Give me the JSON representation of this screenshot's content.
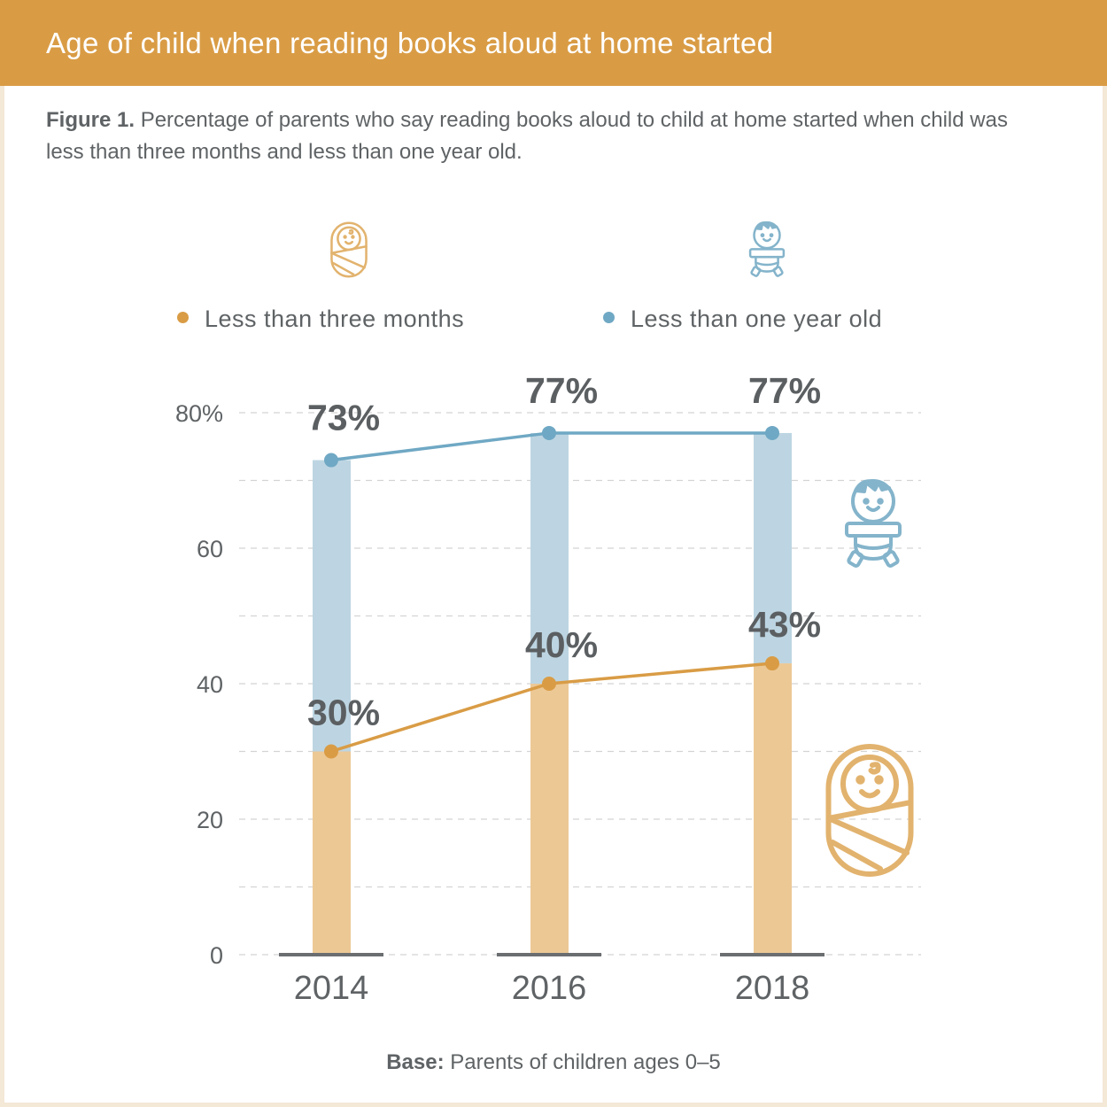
{
  "header": {
    "title": "Age of child when reading books aloud at home started"
  },
  "caption": {
    "label": "Figure 1.",
    "text": " Percentage of parents who say reading books aloud to child at home started when child was less than three months and less than one year old."
  },
  "footer": {
    "label": "Base:",
    "text": " Parents of children ages 0–5"
  },
  "colors": {
    "orange": "#D99C45",
    "orange_light": "#ECC895",
    "blue": "#6FA8C4",
    "blue_light": "#BDD5E2",
    "text": "#5f6365"
  },
  "icons": [
    "swaddled-baby-icon",
    "baby-icon"
  ],
  "chart_data": {
    "type": "bar",
    "title": "Age of child when reading books aloud at home started",
    "categories": [
      "2014",
      "2016",
      "2018"
    ],
    "series": [
      {
        "name": "Less than three months",
        "values": [
          30,
          40,
          43
        ],
        "labels": [
          "30%",
          "40%",
          "43%"
        ]
      },
      {
        "name": "Less than one year old",
        "values": [
          73,
          77,
          77
        ],
        "labels": [
          "73%",
          "77%",
          "77%"
        ]
      }
    ],
    "yticks": [
      "0",
      "20",
      "40",
      "60",
      "80%"
    ],
    "ytick_values": [
      0,
      20,
      40,
      60,
      80
    ],
    "ylim": [
      0,
      80
    ],
    "grid": true,
    "legend": "top"
  }
}
